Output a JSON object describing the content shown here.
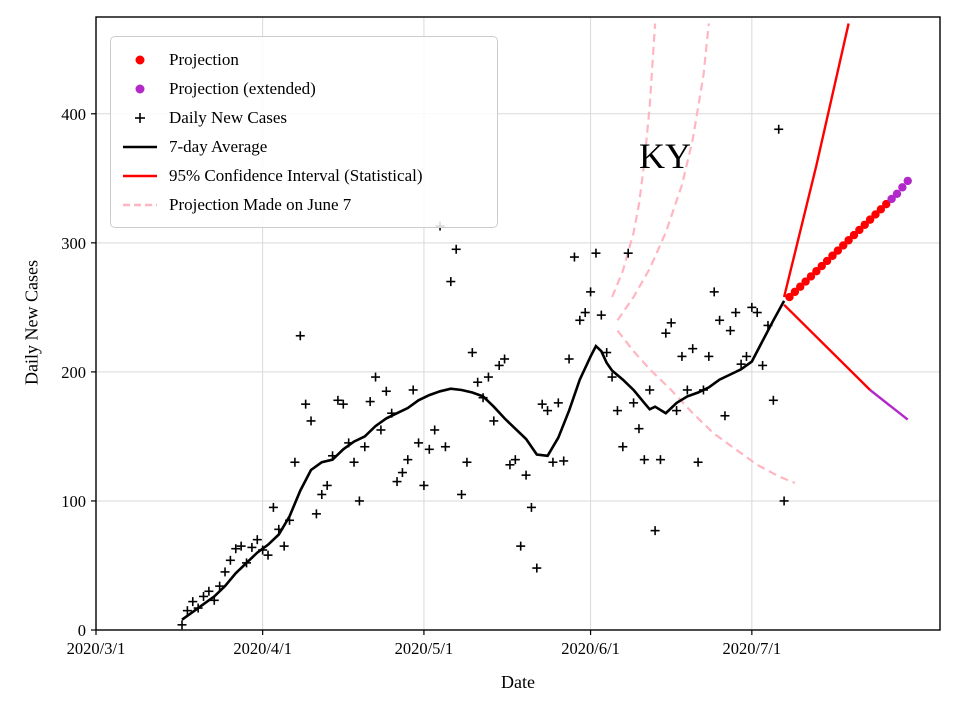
{
  "chart_data": {
    "type": "line",
    "title": "",
    "annotation": "KY",
    "xlabel": "Date",
    "ylabel": "Daily New Cases",
    "grid": true,
    "legend_position": "upper left",
    "ylim": [
      0,
      475
    ],
    "x_start": "2020-03-01",
    "x_end": "2020-08-05",
    "y_ticks": [
      0,
      100,
      200,
      300,
      400
    ],
    "x_ticks": [
      {
        "date": "2020-03-01",
        "label": "2020/3/1"
      },
      {
        "date": "2020-04-01",
        "label": "2020/4/1"
      },
      {
        "date": "2020-05-01",
        "label": "2020/5/1"
      },
      {
        "date": "2020-06-01",
        "label": "2020/6/1"
      },
      {
        "date": "2020-07-01",
        "label": "2020/7/1"
      }
    ],
    "colors": {
      "projection": "#ff0000",
      "projection_extended": "#b228c8",
      "daily_cases": "#000000",
      "average": "#000000",
      "confidence": "#ff0000",
      "june7_projection": "#ffb6c1",
      "grid": "#d9d9d9",
      "frame": "#000000"
    },
    "legend": {
      "items": [
        {
          "label": "Projection",
          "marker": "dot",
          "color": "#ff0000"
        },
        {
          "label": "Projection (extended)",
          "marker": "dot",
          "color": "#b228c8"
        },
        {
          "label": "Daily New Cases",
          "marker": "plus",
          "color": "#000000"
        },
        {
          "label": "7-day Average",
          "marker": "line",
          "color": "#000000"
        },
        {
          "label": "95% Confidence Interval (Statistical)",
          "marker": "line",
          "color": "#ff0000"
        },
        {
          "label": "Projection Made on June 7",
          "marker": "dashed",
          "color": "#ffb6c1"
        }
      ]
    },
    "series": [
      {
        "name": "Projection Made on June 7 (upper bound)",
        "style": "dashed",
        "color": "#ffb6c1",
        "width": 2.2,
        "points": [
          [
            "2020-06-05",
            258
          ],
          [
            "2020-06-07",
            278
          ],
          [
            "2020-06-09",
            308
          ],
          [
            "2020-06-10",
            330
          ],
          [
            "2020-06-11",
            362
          ],
          [
            "2020-06-12",
            406
          ],
          [
            "2020-06-13",
            470
          ]
        ]
      },
      {
        "name": "Projection Made on June 7 (central)",
        "style": "dashed",
        "color": "#ffb6c1",
        "width": 2.2,
        "points": [
          [
            "2020-06-06",
            240
          ],
          [
            "2020-06-09",
            258
          ],
          [
            "2020-06-12",
            280
          ],
          [
            "2020-06-15",
            308
          ],
          [
            "2020-06-18",
            345
          ],
          [
            "2020-06-20",
            380
          ],
          [
            "2020-06-22",
            430
          ],
          [
            "2020-06-23",
            470
          ]
        ]
      },
      {
        "name": "Projection Made on June 7 (lower bound)",
        "style": "dashed",
        "color": "#ffb6c1",
        "width": 2.2,
        "points": [
          [
            "2020-06-06",
            232
          ],
          [
            "2020-06-09",
            216
          ],
          [
            "2020-06-12",
            202
          ],
          [
            "2020-06-16",
            186
          ],
          [
            "2020-06-20",
            168
          ],
          [
            "2020-06-24",
            152
          ],
          [
            "2020-06-28",
            140
          ],
          [
            "2020-07-02",
            128
          ],
          [
            "2020-07-06",
            119
          ],
          [
            "2020-07-09",
            114
          ]
        ]
      },
      {
        "name": "Daily New Cases",
        "style": "scatter-plus",
        "color": "#000000",
        "width": 1.6,
        "points": [
          [
            "2020-03-17",
            4
          ],
          [
            "2020-03-18",
            15
          ],
          [
            "2020-03-19",
            22
          ],
          [
            "2020-03-20",
            17
          ],
          [
            "2020-03-21",
            26
          ],
          [
            "2020-03-22",
            30
          ],
          [
            "2020-03-23",
            23
          ],
          [
            "2020-03-24",
            34
          ],
          [
            "2020-03-25",
            45
          ],
          [
            "2020-03-26",
            54
          ],
          [
            "2020-03-27",
            63
          ],
          [
            "2020-03-28",
            65
          ],
          [
            "2020-03-29",
            52
          ],
          [
            "2020-03-30",
            64
          ],
          [
            "2020-03-31",
            70
          ],
          [
            "2020-04-01",
            62
          ],
          [
            "2020-04-02",
            58
          ],
          [
            "2020-04-03",
            95
          ],
          [
            "2020-04-04",
            78
          ],
          [
            "2020-04-05",
            65
          ],
          [
            "2020-04-06",
            85
          ],
          [
            "2020-04-07",
            130
          ],
          [
            "2020-04-08",
            228
          ],
          [
            "2020-04-09",
            175
          ],
          [
            "2020-04-10",
            162
          ],
          [
            "2020-04-11",
            90
          ],
          [
            "2020-04-12",
            105
          ],
          [
            "2020-04-13",
            112
          ],
          [
            "2020-04-14",
            135
          ],
          [
            "2020-04-15",
            178
          ],
          [
            "2020-04-16",
            175
          ],
          [
            "2020-04-17",
            145
          ],
          [
            "2020-04-18",
            130
          ],
          [
            "2020-04-19",
            100
          ],
          [
            "2020-04-20",
            142
          ],
          [
            "2020-04-21",
            177
          ],
          [
            "2020-04-22",
            196
          ],
          [
            "2020-04-23",
            155
          ],
          [
            "2020-04-24",
            185
          ],
          [
            "2020-04-25",
            168
          ],
          [
            "2020-04-26",
            115
          ],
          [
            "2020-04-27",
            122
          ],
          [
            "2020-04-28",
            132
          ],
          [
            "2020-04-29",
            186
          ],
          [
            "2020-04-30",
            145
          ],
          [
            "2020-05-01",
            112
          ],
          [
            "2020-05-02",
            140
          ],
          [
            "2020-05-03",
            155
          ],
          [
            "2020-05-04",
            313
          ],
          [
            "2020-05-05",
            142
          ],
          [
            "2020-05-06",
            270
          ],
          [
            "2020-05-07",
            295
          ],
          [
            "2020-05-08",
            105
          ],
          [
            "2020-05-09",
            130
          ],
          [
            "2020-05-10",
            215
          ],
          [
            "2020-05-11",
            192
          ],
          [
            "2020-05-12",
            180
          ],
          [
            "2020-05-13",
            196
          ],
          [
            "2020-05-14",
            162
          ],
          [
            "2020-05-15",
            205
          ],
          [
            "2020-05-16",
            210
          ],
          [
            "2020-05-17",
            128
          ],
          [
            "2020-05-18",
            132
          ],
          [
            "2020-05-19",
            65
          ],
          [
            "2020-05-20",
            120
          ],
          [
            "2020-05-21",
            95
          ],
          [
            "2020-05-22",
            48
          ],
          [
            "2020-05-23",
            175
          ],
          [
            "2020-05-24",
            170
          ],
          [
            "2020-05-25",
            130
          ],
          [
            "2020-05-26",
            176
          ],
          [
            "2020-05-27",
            131
          ],
          [
            "2020-05-28",
            210
          ],
          [
            "2020-05-29",
            289
          ],
          [
            "2020-05-30",
            240
          ],
          [
            "2020-05-31",
            246
          ],
          [
            "2020-06-01",
            262
          ],
          [
            "2020-06-02",
            292
          ],
          [
            "2020-06-03",
            244
          ],
          [
            "2020-06-04",
            215
          ],
          [
            "2020-06-05",
            196
          ],
          [
            "2020-06-06",
            170
          ],
          [
            "2020-06-07",
            142
          ],
          [
            "2020-06-08",
            292
          ],
          [
            "2020-06-09",
            176
          ],
          [
            "2020-06-10",
            156
          ],
          [
            "2020-06-11",
            132
          ],
          [
            "2020-06-12",
            186
          ],
          [
            "2020-06-13",
            77
          ],
          [
            "2020-06-14",
            132
          ],
          [
            "2020-06-15",
            230
          ],
          [
            "2020-06-16",
            238
          ],
          [
            "2020-06-17",
            170
          ],
          [
            "2020-06-18",
            212
          ],
          [
            "2020-06-19",
            186
          ],
          [
            "2020-06-20",
            218
          ],
          [
            "2020-06-21",
            130
          ],
          [
            "2020-06-22",
            186
          ],
          [
            "2020-06-23",
            212
          ],
          [
            "2020-06-24",
            262
          ],
          [
            "2020-06-25",
            240
          ],
          [
            "2020-06-26",
            166
          ],
          [
            "2020-06-27",
            232
          ],
          [
            "2020-06-28",
            246
          ],
          [
            "2020-06-29",
            206
          ],
          [
            "2020-06-30",
            212
          ],
          [
            "2020-07-01",
            250
          ],
          [
            "2020-07-02",
            246
          ],
          [
            "2020-07-03",
            205
          ],
          [
            "2020-07-04",
            236
          ],
          [
            "2020-07-05",
            178
          ],
          [
            "2020-07-06",
            388
          ],
          [
            "2020-07-07",
            100
          ]
        ]
      },
      {
        "name": "7-day Average",
        "style": "line",
        "color": "#000000",
        "width": 2.6,
        "points": [
          [
            "2020-03-17",
            8
          ],
          [
            "2020-03-19",
            14
          ],
          [
            "2020-03-21",
            20
          ],
          [
            "2020-03-23",
            26
          ],
          [
            "2020-03-25",
            34
          ],
          [
            "2020-03-27",
            44
          ],
          [
            "2020-03-29",
            52
          ],
          [
            "2020-03-31",
            60
          ],
          [
            "2020-04-02",
            66
          ],
          [
            "2020-04-04",
            74
          ],
          [
            "2020-04-06",
            88
          ],
          [
            "2020-04-08",
            108
          ],
          [
            "2020-04-10",
            124
          ],
          [
            "2020-04-12",
            130
          ],
          [
            "2020-04-14",
            132
          ],
          [
            "2020-04-16",
            140
          ],
          [
            "2020-04-18",
            146
          ],
          [
            "2020-04-20",
            150
          ],
          [
            "2020-04-22",
            158
          ],
          [
            "2020-04-24",
            164
          ],
          [
            "2020-04-26",
            168
          ],
          [
            "2020-04-28",
            172
          ],
          [
            "2020-04-30",
            178
          ],
          [
            "2020-05-02",
            182
          ],
          [
            "2020-05-04",
            185
          ],
          [
            "2020-05-06",
            187
          ],
          [
            "2020-05-08",
            186
          ],
          [
            "2020-05-10",
            184
          ],
          [
            "2020-05-12",
            181
          ],
          [
            "2020-05-14",
            173
          ],
          [
            "2020-05-16",
            164
          ],
          [
            "2020-05-18",
            156
          ],
          [
            "2020-05-20",
            148
          ],
          [
            "2020-05-22",
            136
          ],
          [
            "2020-05-24",
            135
          ],
          [
            "2020-05-26",
            149
          ],
          [
            "2020-05-28",
            170
          ],
          [
            "2020-05-30",
            194
          ],
          [
            "2020-06-01",
            212
          ],
          [
            "2020-06-02",
            220
          ],
          [
            "2020-06-03",
            216
          ],
          [
            "2020-06-04",
            207
          ],
          [
            "2020-06-05",
            201
          ],
          [
            "2020-06-07",
            194
          ],
          [
            "2020-06-09",
            186
          ],
          [
            "2020-06-11",
            176
          ],
          [
            "2020-06-12",
            171
          ],
          [
            "2020-06-13",
            173
          ],
          [
            "2020-06-15",
            168
          ],
          [
            "2020-06-17",
            176
          ],
          [
            "2020-06-19",
            181
          ],
          [
            "2020-06-21",
            184
          ],
          [
            "2020-06-23",
            188
          ],
          [
            "2020-06-25",
            194
          ],
          [
            "2020-06-27",
            198
          ],
          [
            "2020-06-29",
            202
          ],
          [
            "2020-07-01",
            208
          ],
          [
            "2020-07-03",
            224
          ],
          [
            "2020-07-05",
            240
          ],
          [
            "2020-07-07",
            255
          ]
        ]
      },
      {
        "name": "95% Confidence Interval upper",
        "style": "line",
        "color": "#ff0000",
        "width": 2.4,
        "points": [
          [
            "2020-07-07",
            258
          ],
          [
            "2020-07-13",
            360
          ],
          [
            "2020-07-19",
            470
          ]
        ]
      },
      {
        "name": "95% Confidence Interval lower",
        "style": "line",
        "color": "#ff0000",
        "width": 2.4,
        "points": [
          [
            "2020-07-07",
            252
          ],
          [
            "2020-07-23",
            186
          ]
        ]
      },
      {
        "name": "95% Confidence Interval lower (extended)",
        "style": "line",
        "color": "#b228c8",
        "width": 2.4,
        "points": [
          [
            "2020-07-23",
            186
          ],
          [
            "2020-07-30",
            163
          ]
        ]
      },
      {
        "name": "Projection",
        "style": "dots",
        "color": "#ff0000",
        "width": 4.2,
        "points": [
          [
            "2020-07-08",
            258
          ],
          [
            "2020-07-09",
            262
          ],
          [
            "2020-07-10",
            266
          ],
          [
            "2020-07-11",
            270
          ],
          [
            "2020-07-12",
            274
          ],
          [
            "2020-07-13",
            278
          ],
          [
            "2020-07-14",
            282
          ],
          [
            "2020-07-15",
            286
          ],
          [
            "2020-07-16",
            290
          ],
          [
            "2020-07-17",
            294
          ],
          [
            "2020-07-18",
            298
          ],
          [
            "2020-07-19",
            302
          ],
          [
            "2020-07-20",
            306
          ],
          [
            "2020-07-21",
            310
          ],
          [
            "2020-07-22",
            314
          ],
          [
            "2020-07-23",
            318
          ],
          [
            "2020-07-24",
            322
          ],
          [
            "2020-07-25",
            326
          ],
          [
            "2020-07-26",
            330
          ]
        ]
      },
      {
        "name": "Projection (extended)",
        "style": "dots",
        "color": "#b228c8",
        "width": 4.2,
        "points": [
          [
            "2020-07-27",
            334
          ],
          [
            "2020-07-28",
            338
          ],
          [
            "2020-07-29",
            343
          ],
          [
            "2020-07-30",
            348
          ]
        ]
      }
    ]
  }
}
